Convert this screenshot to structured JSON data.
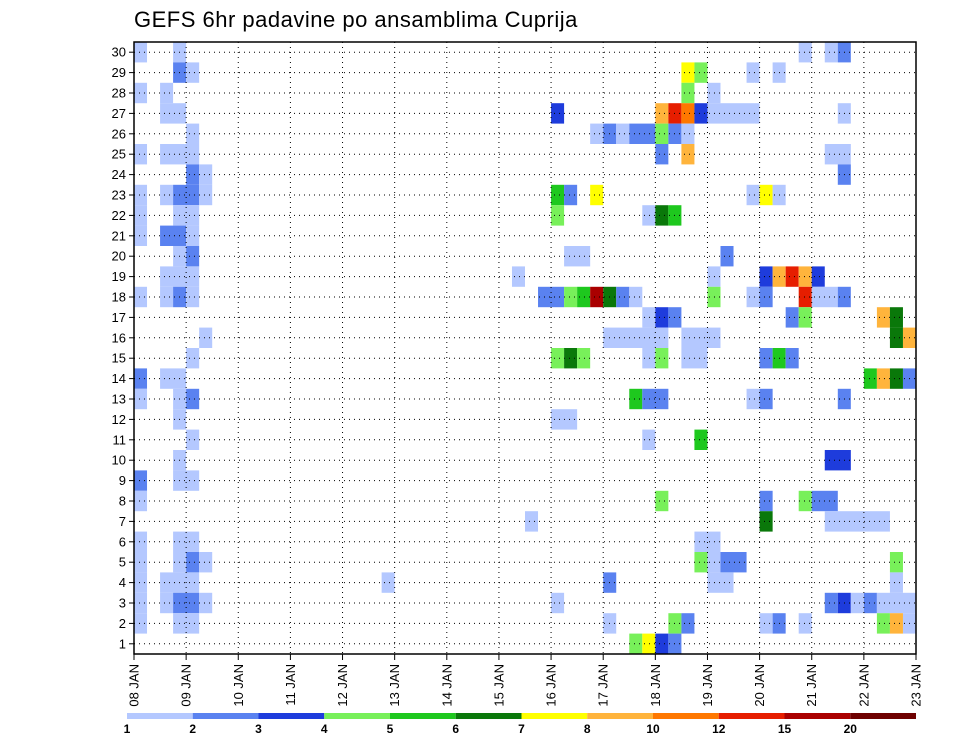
{
  "chart_data": {
    "type": "heatmap",
    "title": "GEFS 6hr padavine po ansamblima Cuprija",
    "xlabel": "",
    "ylabel": "",
    "grid": "dotted",
    "x_ticks": [
      "08 JAN",
      "09 JAN",
      "10 JAN",
      "11 JAN",
      "12 JAN",
      "13 JAN",
      "14 JAN",
      "15 JAN",
      "16 JAN",
      "17 JAN",
      "18 JAN",
      "19 JAN",
      "20 JAN",
      "21 JAN",
      "22 JAN",
      "23 JAN"
    ],
    "y_ticks": [
      1,
      2,
      3,
      4,
      5,
      6,
      7,
      8,
      9,
      10,
      11,
      12,
      13,
      14,
      15,
      16,
      17,
      18,
      19,
      20,
      21,
      22,
      23,
      24,
      25,
      26,
      27,
      28,
      29,
      30
    ],
    "xlim": [
      0,
      15
    ],
    "ylim": [
      0,
      30
    ],
    "legend": {
      "placement": "bottom",
      "labels": [
        "1",
        "2",
        "3",
        "4",
        "5",
        "6",
        "7",
        "8",
        "10",
        "12",
        "15",
        "20"
      ],
      "colors": [
        "#b4c8ff",
        "#5a82f0",
        "#1e3cdc",
        "#78f05a",
        "#1ec81e",
        "#0a780a",
        "#ffff00",
        "#ffb43c",
        "#ff7800",
        "#e61e00",
        "#aa0000",
        "#6e0000"
      ]
    },
    "cells": [
      {
        "x": 0.0,
        "x2": 0.25,
        "y": 30,
        "v": 1
      },
      {
        "x": 0.75,
        "x2": 1.0,
        "y": 30,
        "v": 1
      },
      {
        "x": 12.75,
        "x2": 13.0,
        "y": 30,
        "v": 1
      },
      {
        "x": 13.25,
        "x2": 13.5,
        "y": 30,
        "v": 1
      },
      {
        "x": 13.5,
        "x2": 13.75,
        "y": 30,
        "v": 2
      },
      {
        "x": 0.75,
        "x2": 1.0,
        "y": 29,
        "v": 2
      },
      {
        "x": 1.0,
        "x2": 1.25,
        "y": 29,
        "v": 1
      },
      {
        "x": 10.5,
        "x2": 10.75,
        "y": 29,
        "v": 7
      },
      {
        "x": 10.75,
        "x2": 11.0,
        "y": 29,
        "v": 4
      },
      {
        "x": 11.75,
        "x2": 12.0,
        "y": 29,
        "v": 1
      },
      {
        "x": 12.25,
        "x2": 12.5,
        "y": 29,
        "v": 1
      },
      {
        "x": 0.0,
        "x2": 0.25,
        "y": 28,
        "v": 1
      },
      {
        "x": 0.5,
        "x2": 0.75,
        "y": 28,
        "v": 1
      },
      {
        "x": 10.5,
        "x2": 10.75,
        "y": 28,
        "v": 4
      },
      {
        "x": 11.0,
        "x2": 11.25,
        "y": 28,
        "v": 1
      },
      {
        "x": 0.5,
        "x2": 1.0,
        "y": 27,
        "v": 1
      },
      {
        "x": 8.0,
        "x2": 8.25,
        "y": 27,
        "v": 3
      },
      {
        "x": 10.0,
        "x2": 10.25,
        "y": 27,
        "v": 8
      },
      {
        "x": 10.25,
        "x2": 10.5,
        "y": 27,
        "v": 12
      },
      {
        "x": 10.5,
        "x2": 10.75,
        "y": 27,
        "v": 10
      },
      {
        "x": 10.75,
        "x2": 11.0,
        "y": 27,
        "v": 3
      },
      {
        "x": 11.0,
        "x2": 12.0,
        "y": 27,
        "v": 1
      },
      {
        "x": 13.5,
        "x2": 13.75,
        "y": 27,
        "v": 1
      },
      {
        "x": 1.0,
        "x2": 1.25,
        "y": 26,
        "v": 1
      },
      {
        "x": 8.75,
        "x2": 9.0,
        "y": 26,
        "v": 1
      },
      {
        "x": 9.0,
        "x2": 9.25,
        "y": 26,
        "v": 2
      },
      {
        "x": 9.25,
        "x2": 9.5,
        "y": 26,
        "v": 1
      },
      {
        "x": 9.5,
        "x2": 10.0,
        "y": 26,
        "v": 2
      },
      {
        "x": 10.0,
        "x2": 10.25,
        "y": 26,
        "v": 4
      },
      {
        "x": 10.25,
        "x2": 10.5,
        "y": 26,
        "v": 2
      },
      {
        "x": 10.5,
        "x2": 10.75,
        "y": 26,
        "v": 1
      },
      {
        "x": 0.0,
        "x2": 0.25,
        "y": 25,
        "v": 1
      },
      {
        "x": 0.5,
        "x2": 1.25,
        "y": 25,
        "v": 1
      },
      {
        "x": 10.0,
        "x2": 10.25,
        "y": 25,
        "v": 2
      },
      {
        "x": 10.5,
        "x2": 10.75,
        "y": 25,
        "v": 8
      },
      {
        "x": 13.25,
        "x2": 13.75,
        "y": 25,
        "v": 1
      },
      {
        "x": 1.0,
        "x2": 1.25,
        "y": 24,
        "v": 2
      },
      {
        "x": 1.25,
        "x2": 1.5,
        "y": 24,
        "v": 1
      },
      {
        "x": 13.5,
        "x2": 13.75,
        "y": 24,
        "v": 2
      },
      {
        "x": 0.0,
        "x2": 0.25,
        "y": 23,
        "v": 1
      },
      {
        "x": 0.5,
        "x2": 0.75,
        "y": 23,
        "v": 1
      },
      {
        "x": 0.75,
        "x2": 1.25,
        "y": 23,
        "v": 2
      },
      {
        "x": 1.25,
        "x2": 1.5,
        "y": 23,
        "v": 1
      },
      {
        "x": 8.0,
        "x2": 8.25,
        "y": 23,
        "v": 5
      },
      {
        "x": 8.25,
        "x2": 8.5,
        "y": 23,
        "v": 2
      },
      {
        "x": 8.75,
        "x2": 9.0,
        "y": 23,
        "v": 7
      },
      {
        "x": 11.75,
        "x2": 12.0,
        "y": 23,
        "v": 1
      },
      {
        "x": 12.0,
        "x2": 12.25,
        "y": 23,
        "v": 7
      },
      {
        "x": 12.25,
        "x2": 12.5,
        "y": 23,
        "v": 1
      },
      {
        "x": 0.0,
        "x2": 0.25,
        "y": 22,
        "v": 1
      },
      {
        "x": 0.75,
        "x2": 1.25,
        "y": 22,
        "v": 1
      },
      {
        "x": 8.0,
        "x2": 8.25,
        "y": 22,
        "v": 4
      },
      {
        "x": 9.75,
        "x2": 10.0,
        "y": 22,
        "v": 1
      },
      {
        "x": 10.0,
        "x2": 10.25,
        "y": 22,
        "v": 6
      },
      {
        "x": 10.25,
        "x2": 10.5,
        "y": 22,
        "v": 5
      },
      {
        "x": 0.0,
        "x2": 0.25,
        "y": 21,
        "v": 1
      },
      {
        "x": 0.5,
        "x2": 1.0,
        "y": 21,
        "v": 2
      },
      {
        "x": 1.0,
        "x2": 1.25,
        "y": 21,
        "v": 1
      },
      {
        "x": 0.75,
        "x2": 1.0,
        "y": 20,
        "v": 1
      },
      {
        "x": 1.0,
        "x2": 1.25,
        "y": 20,
        "v": 2
      },
      {
        "x": 8.25,
        "x2": 8.75,
        "y": 20,
        "v": 1
      },
      {
        "x": 11.25,
        "x2": 11.5,
        "y": 20,
        "v": 2
      },
      {
        "x": 0.5,
        "x2": 1.25,
        "y": 19,
        "v": 1
      },
      {
        "x": 7.25,
        "x2": 7.5,
        "y": 19,
        "v": 1
      },
      {
        "x": 11.0,
        "x2": 11.25,
        "y": 19,
        "v": 1
      },
      {
        "x": 12.0,
        "x2": 12.25,
        "y": 19,
        "v": 3
      },
      {
        "x": 12.25,
        "x2": 12.5,
        "y": 19,
        "v": 8
      },
      {
        "x": 12.5,
        "x2": 12.75,
        "y": 19,
        "v": 12
      },
      {
        "x": 12.75,
        "x2": 13.0,
        "y": 19,
        "v": 8
      },
      {
        "x": 13.0,
        "x2": 13.25,
        "y": 19,
        "v": 3
      },
      {
        "x": 0.0,
        "x2": 0.25,
        "y": 18,
        "v": 1
      },
      {
        "x": 0.5,
        "x2": 0.75,
        "y": 18,
        "v": 1
      },
      {
        "x": 0.75,
        "x2": 1.0,
        "y": 18,
        "v": 2
      },
      {
        "x": 1.0,
        "x2": 1.25,
        "y": 18,
        "v": 1
      },
      {
        "x": 7.75,
        "x2": 8.25,
        "y": 18,
        "v": 2
      },
      {
        "x": 8.25,
        "x2": 8.5,
        "y": 18,
        "v": 4
      },
      {
        "x": 8.5,
        "x2": 8.75,
        "y": 18,
        "v": 5
      },
      {
        "x": 8.75,
        "x2": 9.0,
        "y": 18,
        "v": 15
      },
      {
        "x": 9.0,
        "x2": 9.25,
        "y": 18,
        "v": 6
      },
      {
        "x": 9.25,
        "x2": 9.5,
        "y": 18,
        "v": 2
      },
      {
        "x": 9.5,
        "x2": 9.75,
        "y": 18,
        "v": 1
      },
      {
        "x": 11.0,
        "x2": 11.25,
        "y": 18,
        "v": 4
      },
      {
        "x": 11.75,
        "x2": 12.0,
        "y": 18,
        "v": 1
      },
      {
        "x": 12.0,
        "x2": 12.25,
        "y": 18,
        "v": 2
      },
      {
        "x": 12.75,
        "x2": 13.0,
        "y": 18,
        "v": 12
      },
      {
        "x": 13.0,
        "x2": 13.5,
        "y": 18,
        "v": 1
      },
      {
        "x": 13.5,
        "x2": 13.75,
        "y": 18,
        "v": 2
      },
      {
        "x": 9.75,
        "x2": 10.0,
        "y": 17,
        "v": 1
      },
      {
        "x": 10.0,
        "x2": 10.25,
        "y": 17,
        "v": 3
      },
      {
        "x": 10.25,
        "x2": 10.5,
        "y": 17,
        "v": 2
      },
      {
        "x": 12.5,
        "x2": 12.75,
        "y": 17,
        "v": 2
      },
      {
        "x": 12.75,
        "x2": 13.0,
        "y": 17,
        "v": 4
      },
      {
        "x": 14.25,
        "x2": 14.5,
        "y": 17,
        "v": 8
      },
      {
        "x": 14.5,
        "x2": 14.75,
        "y": 17,
        "v": 6
      },
      {
        "x": 1.25,
        "x2": 1.5,
        "y": 16,
        "v": 1
      },
      {
        "x": 9.0,
        "x2": 10.25,
        "y": 16,
        "v": 1
      },
      {
        "x": 10.5,
        "x2": 11.25,
        "y": 16,
        "v": 1
      },
      {
        "x": 14.5,
        "x2": 14.75,
        "y": 16,
        "v": 6
      },
      {
        "x": 14.75,
        "x2": 15.0,
        "y": 16,
        "v": 8
      },
      {
        "x": 1.0,
        "x2": 1.25,
        "y": 15,
        "v": 1
      },
      {
        "x": 8.0,
        "x2": 8.25,
        "y": 15,
        "v": 4
      },
      {
        "x": 8.25,
        "x2": 8.5,
        "y": 15,
        "v": 6
      },
      {
        "x": 8.5,
        "x2": 8.75,
        "y": 15,
        "v": 4
      },
      {
        "x": 9.75,
        "x2": 10.0,
        "y": 15,
        "v": 1
      },
      {
        "x": 10.0,
        "x2": 10.25,
        "y": 15,
        "v": 4
      },
      {
        "x": 10.5,
        "x2": 11.0,
        "y": 15,
        "v": 1
      },
      {
        "x": 12.0,
        "x2": 12.25,
        "y": 15,
        "v": 2
      },
      {
        "x": 12.25,
        "x2": 12.5,
        "y": 15,
        "v": 5
      },
      {
        "x": 12.5,
        "x2": 12.75,
        "y": 15,
        "v": 2
      },
      {
        "x": 0.0,
        "x2": 0.25,
        "y": 14,
        "v": 2
      },
      {
        "x": 0.5,
        "x2": 1.0,
        "y": 14,
        "v": 1
      },
      {
        "x": 14.0,
        "x2": 14.25,
        "y": 14,
        "v": 5
      },
      {
        "x": 14.25,
        "x2": 14.5,
        "y": 14,
        "v": 8
      },
      {
        "x": 14.5,
        "x2": 14.75,
        "y": 14,
        "v": 6
      },
      {
        "x": 14.75,
        "x2": 15.0,
        "y": 14,
        "v": 2
      },
      {
        "x": 0.0,
        "x2": 0.25,
        "y": 13,
        "v": 1
      },
      {
        "x": 0.75,
        "x2": 1.0,
        "y": 13,
        "v": 1
      },
      {
        "x": 1.0,
        "x2": 1.25,
        "y": 13,
        "v": 2
      },
      {
        "x": 9.5,
        "x2": 9.75,
        "y": 13,
        "v": 5
      },
      {
        "x": 9.75,
        "x2": 10.25,
        "y": 13,
        "v": 2
      },
      {
        "x": 11.75,
        "x2": 12.0,
        "y": 13,
        "v": 1
      },
      {
        "x": 12.0,
        "x2": 12.25,
        "y": 13,
        "v": 2
      },
      {
        "x": 13.5,
        "x2": 13.75,
        "y": 13,
        "v": 2
      },
      {
        "x": 0.75,
        "x2": 1.0,
        "y": 12,
        "v": 1
      },
      {
        "x": 8.0,
        "x2": 8.5,
        "y": 12,
        "v": 1
      },
      {
        "x": 1.0,
        "x2": 1.25,
        "y": 11,
        "v": 1
      },
      {
        "x": 9.75,
        "x2": 10.0,
        "y": 11,
        "v": 1
      },
      {
        "x": 10.75,
        "x2": 11.0,
        "y": 11,
        "v": 5
      },
      {
        "x": 0.75,
        "x2": 1.0,
        "y": 10,
        "v": 1
      },
      {
        "x": 13.25,
        "x2": 13.75,
        "y": 10,
        "v": 3
      },
      {
        "x": 0.0,
        "x2": 0.25,
        "y": 9,
        "v": 2
      },
      {
        "x": 0.75,
        "x2": 1.25,
        "y": 9,
        "v": 1
      },
      {
        "x": 0.0,
        "x2": 0.25,
        "y": 8,
        "v": 1
      },
      {
        "x": 10.0,
        "x2": 10.25,
        "y": 8,
        "v": 4
      },
      {
        "x": 12.0,
        "x2": 12.25,
        "y": 8,
        "v": 2
      },
      {
        "x": 12.75,
        "x2": 13.0,
        "y": 8,
        "v": 4
      },
      {
        "x": 13.0,
        "x2": 13.5,
        "y": 8,
        "v": 2
      },
      {
        "x": 7.5,
        "x2": 7.75,
        "y": 7,
        "v": 1
      },
      {
        "x": 12.0,
        "x2": 12.25,
        "y": 7,
        "v": 6
      },
      {
        "x": 13.25,
        "x2": 14.5,
        "y": 7,
        "v": 1
      },
      {
        "x": 0.0,
        "x2": 0.25,
        "y": 6,
        "v": 1
      },
      {
        "x": 0.75,
        "x2": 1.25,
        "y": 6,
        "v": 1
      },
      {
        "x": 10.75,
        "x2": 11.25,
        "y": 6,
        "v": 1
      },
      {
        "x": 0.0,
        "x2": 0.25,
        "y": 5,
        "v": 1
      },
      {
        "x": 0.75,
        "x2": 1.0,
        "y": 5,
        "v": 1
      },
      {
        "x": 1.0,
        "x2": 1.25,
        "y": 5,
        "v": 2
      },
      {
        "x": 1.25,
        "x2": 1.5,
        "y": 5,
        "v": 1
      },
      {
        "x": 10.75,
        "x2": 11.0,
        "y": 5,
        "v": 4
      },
      {
        "x": 11.0,
        "x2": 11.25,
        "y": 5,
        "v": 1
      },
      {
        "x": 11.25,
        "x2": 11.75,
        "y": 5,
        "v": 2
      },
      {
        "x": 14.5,
        "x2": 14.75,
        "y": 5,
        "v": 4
      },
      {
        "x": 0.0,
        "x2": 0.25,
        "y": 4,
        "v": 1
      },
      {
        "x": 0.5,
        "x2": 1.25,
        "y": 4,
        "v": 1
      },
      {
        "x": 4.75,
        "x2": 5.0,
        "y": 4,
        "v": 1
      },
      {
        "x": 9.0,
        "x2": 9.25,
        "y": 4,
        "v": 2
      },
      {
        "x": 11.0,
        "x2": 11.5,
        "y": 4,
        "v": 1
      },
      {
        "x": 14.5,
        "x2": 14.75,
        "y": 4,
        "v": 1
      },
      {
        "x": 0.0,
        "x2": 0.25,
        "y": 3,
        "v": 1
      },
      {
        "x": 0.5,
        "x2": 0.75,
        "y": 3,
        "v": 1
      },
      {
        "x": 0.75,
        "x2": 1.25,
        "y": 3,
        "v": 2
      },
      {
        "x": 1.25,
        "x2": 1.5,
        "y": 3,
        "v": 1
      },
      {
        "x": 8.0,
        "x2": 8.25,
        "y": 3,
        "v": 1
      },
      {
        "x": 13.25,
        "x2": 13.5,
        "y": 3,
        "v": 2
      },
      {
        "x": 13.5,
        "x2": 13.75,
        "y": 3,
        "v": 3
      },
      {
        "x": 13.75,
        "x2": 14.0,
        "y": 3,
        "v": 1
      },
      {
        "x": 14.0,
        "x2": 14.25,
        "y": 3,
        "v": 2
      },
      {
        "x": 14.25,
        "x2": 15.0,
        "y": 3,
        "v": 1
      },
      {
        "x": 0.0,
        "x2": 0.25,
        "y": 2,
        "v": 1
      },
      {
        "x": 0.75,
        "x2": 1.25,
        "y": 2,
        "v": 1
      },
      {
        "x": 9.0,
        "x2": 9.25,
        "y": 2,
        "v": 1
      },
      {
        "x": 10.25,
        "x2": 10.5,
        "y": 2,
        "v": 4
      },
      {
        "x": 10.5,
        "x2": 10.75,
        "y": 2,
        "v": 2
      },
      {
        "x": 12.0,
        "x2": 12.25,
        "y": 2,
        "v": 1
      },
      {
        "x": 12.25,
        "x2": 12.5,
        "y": 2,
        "v": 2
      },
      {
        "x": 12.75,
        "x2": 13.0,
        "y": 2,
        "v": 1
      },
      {
        "x": 14.25,
        "x2": 14.5,
        "y": 2,
        "v": 4
      },
      {
        "x": 14.5,
        "x2": 14.75,
        "y": 2,
        "v": 8
      },
      {
        "x": 14.75,
        "x2": 15.0,
        "y": 2,
        "v": 1
      },
      {
        "x": 9.5,
        "x2": 9.75,
        "y": 1,
        "v": 4
      },
      {
        "x": 9.75,
        "x2": 10.0,
        "y": 1,
        "v": 7
      },
      {
        "x": 10.0,
        "x2": 10.25,
        "y": 1,
        "v": 3
      },
      {
        "x": 10.25,
        "x2": 10.5,
        "y": 1,
        "v": 2
      }
    ]
  }
}
